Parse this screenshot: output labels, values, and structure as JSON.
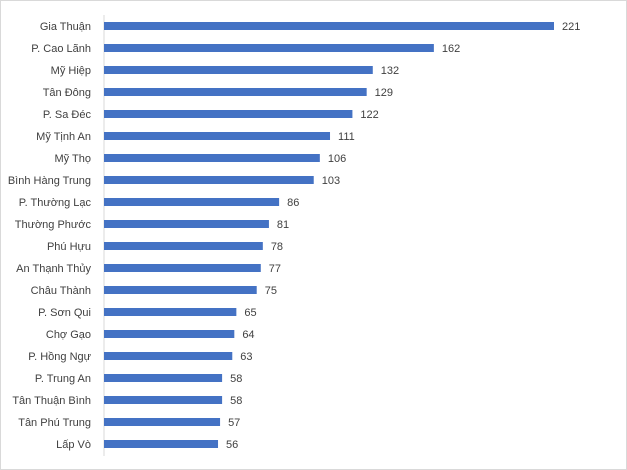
{
  "chart_data": {
    "type": "bar",
    "orientation": "horizontal",
    "categories": [
      "Gia Thuận",
      "P. Cao Lãnh",
      "Mỹ Hiệp",
      "Tân Đông",
      "P. Sa Đéc",
      "Mỹ Tịnh An",
      "Mỹ Thọ",
      "Bình Hàng Trung",
      "P. Thường Lạc",
      "Thường Phước",
      "Phú Hựu",
      "An Thạnh Thủy",
      "Châu Thành",
      "P. Sơn Qui",
      "Chợ Gạo",
      "P. Hồng Ngự",
      "P. Trung An",
      "Tân Thuận Bình",
      "Tân Phú Trung",
      "Lấp Vò"
    ],
    "values": [
      221,
      162,
      132,
      129,
      122,
      111,
      106,
      103,
      86,
      81,
      78,
      77,
      75,
      65,
      64,
      63,
      58,
      58,
      57,
      56
    ],
    "xlim": [
      0,
      221
    ],
    "grid": false,
    "legend": "none",
    "data_labels": true,
    "bar_color": "#4472c4",
    "axis_color": "#d9d9d9",
    "label_color": "#404040"
  }
}
